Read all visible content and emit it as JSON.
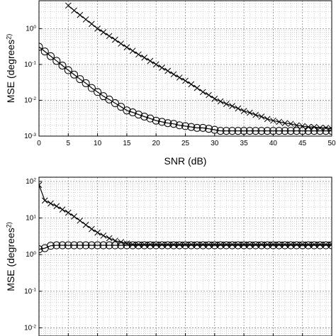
{
  "chart_data": [
    {
      "type": "line",
      "log_y": true,
      "grid": true,
      "x_axis_label": "SNR (dB)",
      "y_axis_label": "MSE (degrees^2)",
      "x": [
        0,
        1,
        2,
        3,
        4,
        5,
        6,
        7,
        8,
        9,
        10,
        11,
        12,
        13,
        14,
        15,
        16,
        17,
        18,
        19,
        20,
        21,
        22,
        23,
        24,
        25,
        26,
        27,
        28,
        29,
        30,
        31,
        32,
        33,
        34,
        35,
        36,
        37,
        38,
        39,
        40,
        41,
        42,
        43,
        44,
        45,
        46,
        47,
        48,
        49,
        50
      ],
      "xlim": [
        0,
        50
      ],
      "xticks": [
        0,
        5,
        10,
        15,
        20,
        25,
        30,
        35,
        40,
        45,
        50
      ],
      "x_tick_labels": true,
      "ylim": [
        0.001,
        6
      ],
      "yticks": [
        {
          "value": 0.001,
          "label": "10^-3"
        },
        {
          "value": 0.01,
          "label": "10^-2"
        },
        {
          "value": 0.1,
          "label": "10^-1"
        },
        {
          "value": 1,
          "label": "10^0"
        }
      ],
      "series": [
        {
          "color": "#000000",
          "marker": "x",
          "values": [
            null,
            null,
            null,
            null,
            null,
            4.4,
            3.2,
            2.4,
            1.8,
            1.35,
            1.0,
            0.79,
            0.62,
            0.49,
            0.38,
            0.3,
            0.24,
            0.19,
            0.155,
            0.125,
            0.1,
            0.081,
            0.066,
            0.053,
            0.043,
            0.035,
            0.028,
            0.022,
            0.017,
            0.014,
            0.011,
            0.0093,
            0.0079,
            0.0069,
            0.0059,
            0.005,
            0.0045,
            0.0039,
            0.0035,
            0.003,
            0.0027,
            0.0025,
            0.0023,
            0.0022,
            0.002,
            0.0019,
            0.0018,
            0.0018,
            0.0017,
            0.0017,
            0.0016
          ]
        },
        {
          "color": "#000000",
          "marker": "o",
          "values": [
            0.31,
            0.23,
            0.17,
            0.126,
            0.093,
            0.069,
            0.052,
            0.039,
            0.03,
            0.022,
            0.017,
            0.013,
            0.0105,
            0.0083,
            0.0066,
            0.0052,
            0.0046,
            0.004,
            0.0035,
            0.0031,
            0.0027,
            0.0025,
            0.0023,
            0.0022,
            0.002,
            0.0019,
            0.0018,
            0.0017,
            0.0017,
            0.0016,
            0.0015,
            0.0014,
            0.0014,
            0.0014,
            0.0014,
            0.0014,
            0.0014,
            0.0014,
            0.0014,
            0.0014,
            0.0014,
            0.0014,
            0.0014,
            0.0014,
            0.0014,
            0.0014,
            0.0014,
            0.0014,
            0.0014,
            0.0014,
            0.0014
          ]
        }
      ]
    },
    {
      "type": "line",
      "log_y": true,
      "grid": true,
      "y_axis_label": "MSE (degrees^2)",
      "x": [
        0,
        1,
        2,
        3,
        4,
        5,
        6,
        7,
        8,
        9,
        10,
        11,
        12,
        13,
        14,
        15,
        16,
        17,
        18,
        19,
        20,
        21,
        22,
        23,
        24,
        25,
        26,
        27,
        28,
        29,
        30,
        31,
        32,
        33,
        34,
        35,
        36,
        37,
        38,
        39,
        40,
        41,
        42,
        43,
        44,
        45,
        46,
        47,
        48,
        49,
        50
      ],
      "xlim": [
        0,
        50
      ],
      "xticks": [
        0,
        5,
        10,
        15,
        20,
        25,
        30,
        35,
        40,
        45,
        50
      ],
      "x_tick_labels": false,
      "ylim": [
        0.006,
        130
      ],
      "yticks": [
        {
          "value": 0.01,
          "label": "10^-2"
        },
        {
          "value": 0.1,
          "label": "10^-1"
        },
        {
          "value": 1,
          "label": "10^0"
        },
        {
          "value": 10,
          "label": "10^1"
        },
        {
          "value": 100,
          "label": "10^2"
        }
      ],
      "series": [
        {
          "color": "#000000",
          "marker": "x",
          "values": [
            80,
            30,
            25,
            21,
            17,
            14,
            11,
            8.5,
            6.5,
            5,
            4,
            3.3,
            2.8,
            2.4,
            2.2,
            2.0,
            1.9,
            1.9,
            1.9,
            1.9,
            1.9,
            1.9,
            1.9,
            1.9,
            1.9,
            1.9,
            1.9,
            1.9,
            1.9,
            1.9,
            1.9,
            1.9,
            1.9,
            1.9,
            1.9,
            1.9,
            1.9,
            1.9,
            1.9,
            1.9,
            1.9,
            1.9,
            1.9,
            1.9,
            1.9,
            1.9,
            1.9,
            1.9,
            1.9,
            1.9,
            1.9
          ]
        },
        {
          "color": "#000000",
          "marker": "o",
          "values": [
            1.4,
            1.5,
            1.75,
            1.8,
            1.8,
            1.8,
            1.8,
            1.8,
            1.8,
            1.8,
            1.8,
            1.8,
            1.8,
            1.8,
            1.8,
            1.8,
            1.8,
            1.8,
            1.8,
            1.8,
            1.8,
            1.8,
            1.8,
            1.8,
            1.8,
            1.8,
            1.8,
            1.8,
            1.8,
            1.8,
            1.8,
            1.8,
            1.8,
            1.8,
            1.8,
            1.8,
            1.8,
            1.8,
            1.8,
            1.8,
            1.8,
            1.8,
            1.8,
            1.8,
            1.8,
            1.8,
            1.8,
            1.8,
            1.8,
            1.8,
            1.8
          ]
        }
      ]
    }
  ]
}
